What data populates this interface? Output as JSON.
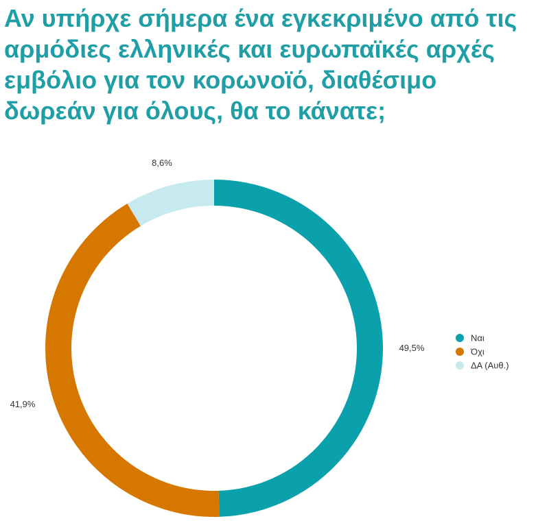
{
  "chart_data": {
    "type": "pie",
    "title": "Αν υπήρχε σήμερα ένα εγκεκριμένο από τις αρμόδιες ελληνικές και ευρωπαϊκές αρχές εμβόλιο για τον κορωνοϊό, διαθέσιμο δωρεάν για όλους, θα το κάνατε;",
    "categories": [
      "Ναι",
      "Όχι",
      "ΔΑ (Αυθ.)"
    ],
    "values": [
      49.5,
      41.9,
      8.6
    ],
    "labels": [
      "49,5%",
      "41,9%",
      "8,6%"
    ],
    "colors": [
      "#0aa1ad",
      "#d67800",
      "#c6eaee"
    ],
    "legend": "right"
  }
}
